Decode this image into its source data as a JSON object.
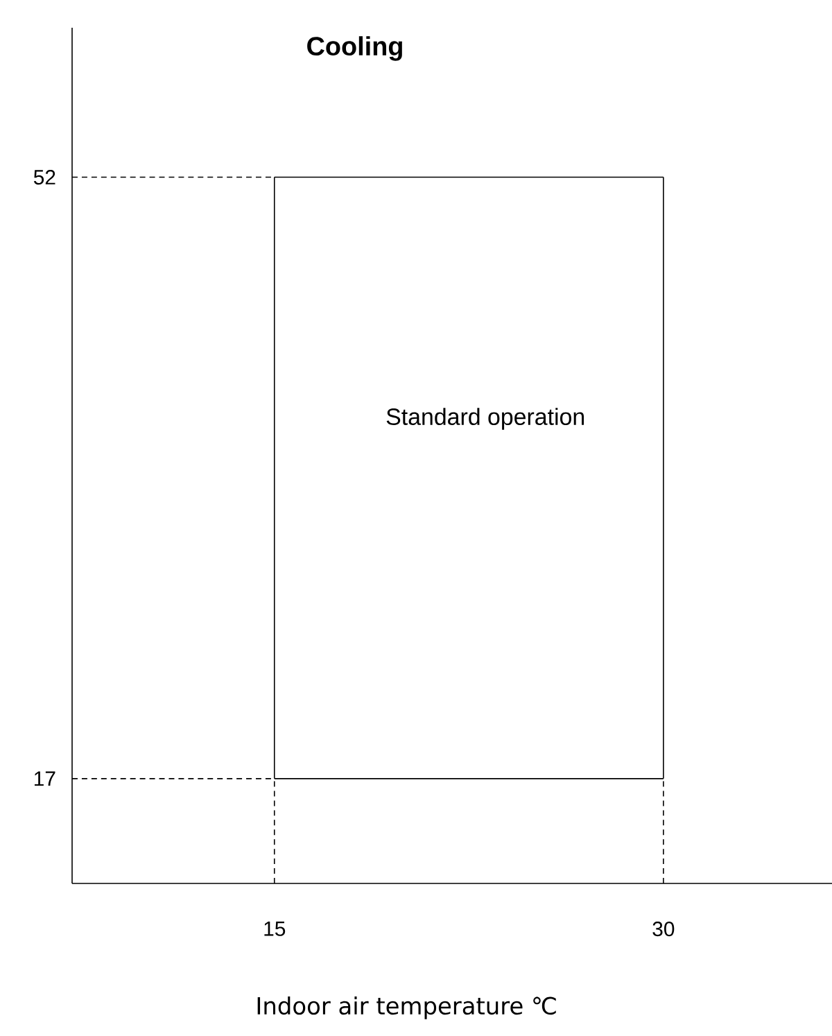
{
  "chart_data": {
    "type": "line",
    "title": "Cooling",
    "xlabel": "Indoor air temperature ℃",
    "series": [
      {
        "color": "#000000",
        "line_style": "solid",
        "x": [
          15,
          30
        ],
        "values": [
          52,
          52
        ]
      },
      {
        "color": "#000000",
        "line_style": "solid",
        "x": [
          15,
          30
        ],
        "values": [
          17,
          17
        ]
      },
      {
        "color": "#000000",
        "line_style": "solid",
        "x": [
          15,
          15
        ],
        "values": [
          17,
          52
        ]
      },
      {
        "color": "#000000",
        "line_style": "solid",
        "x": [
          30,
          30
        ],
        "values": [
          17,
          52
        ]
      },
      {
        "color": "#000000",
        "line_style": "dashed",
        "x": [
          7.2,
          15
        ],
        "values": [
          52,
          52
        ]
      },
      {
        "color": "#000000",
        "line_style": "dashed",
        "x": [
          7.2,
          15
        ],
        "values": [
          17,
          17
        ]
      },
      {
        "color": "#000000",
        "line_style": "dashed",
        "x": [
          15,
          15
        ],
        "values": [
          10.9,
          17
        ]
      },
      {
        "color": "#000000",
        "line_style": "dashed",
        "x": [
          30,
          30
        ],
        "values": [
          10.9,
          17
        ]
      }
    ],
    "xlim": [
      7.2,
      36.5
    ],
    "ylim": [
      10.9,
      60.7
    ],
    "xticks": [
      15,
      30
    ],
    "yticks": [
      17,
      52
    ],
    "annotations": [
      "Standard operation"
    ],
    "grid": false
  }
}
